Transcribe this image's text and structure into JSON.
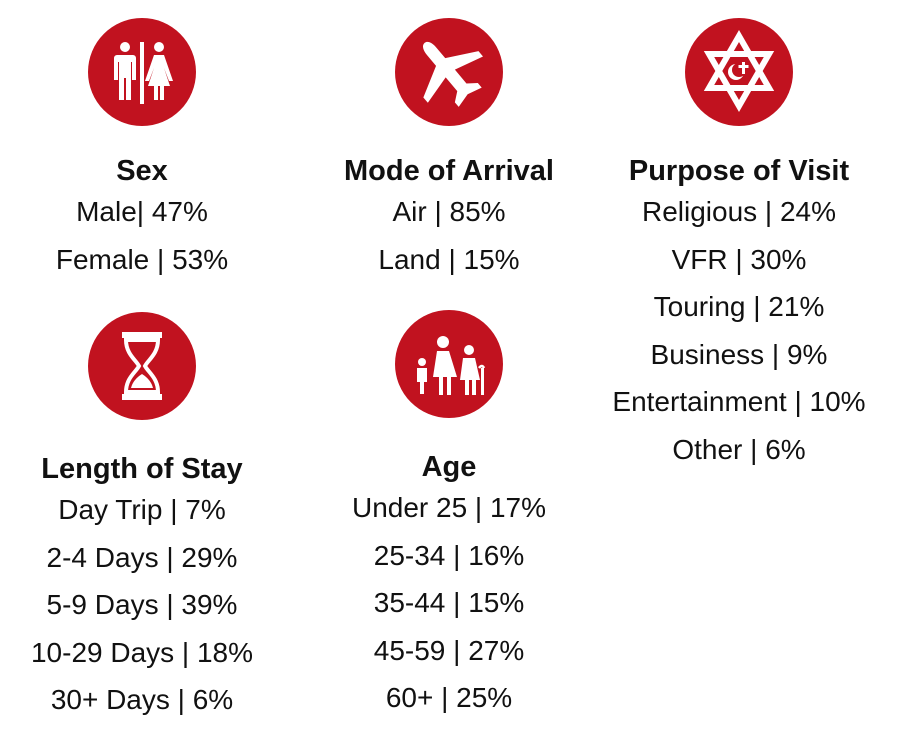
{
  "sex": {
    "icon": "restroom-icon",
    "title": "Sex",
    "items": [
      "Male| 47%",
      "Female | 53%"
    ]
  },
  "mode": {
    "icon": "airplane-icon",
    "title": "Mode of Arrival",
    "items": [
      "Air | 85%",
      "Land | 15%"
    ]
  },
  "purpose": {
    "icon": "star-of-david-icon",
    "title": "Purpose of Visit",
    "items": [
      "Religious | 24%",
      "VFR | 30%",
      "Touring | 21%",
      "Business | 9%",
      "Entertainment | 10%",
      "Other | 6%"
    ]
  },
  "stay": {
    "icon": "hourglass-icon",
    "title": "Length of Stay",
    "items": [
      "Day Trip | 7%",
      "2-4 Days | 29%",
      "5-9 Days | 39%",
      "10-29 Days | 18%",
      "30+ Days | 6%"
    ]
  },
  "age": {
    "icon": "family-icon",
    "title": "Age",
    "items": [
      "Under 25 | 17%",
      "25-34 | 16%",
      "35-44 | 15%",
      "45-59 | 27%",
      "60+ | 25%"
    ]
  },
  "colors": {
    "accent": "#c1121f",
    "text": "#111111"
  }
}
